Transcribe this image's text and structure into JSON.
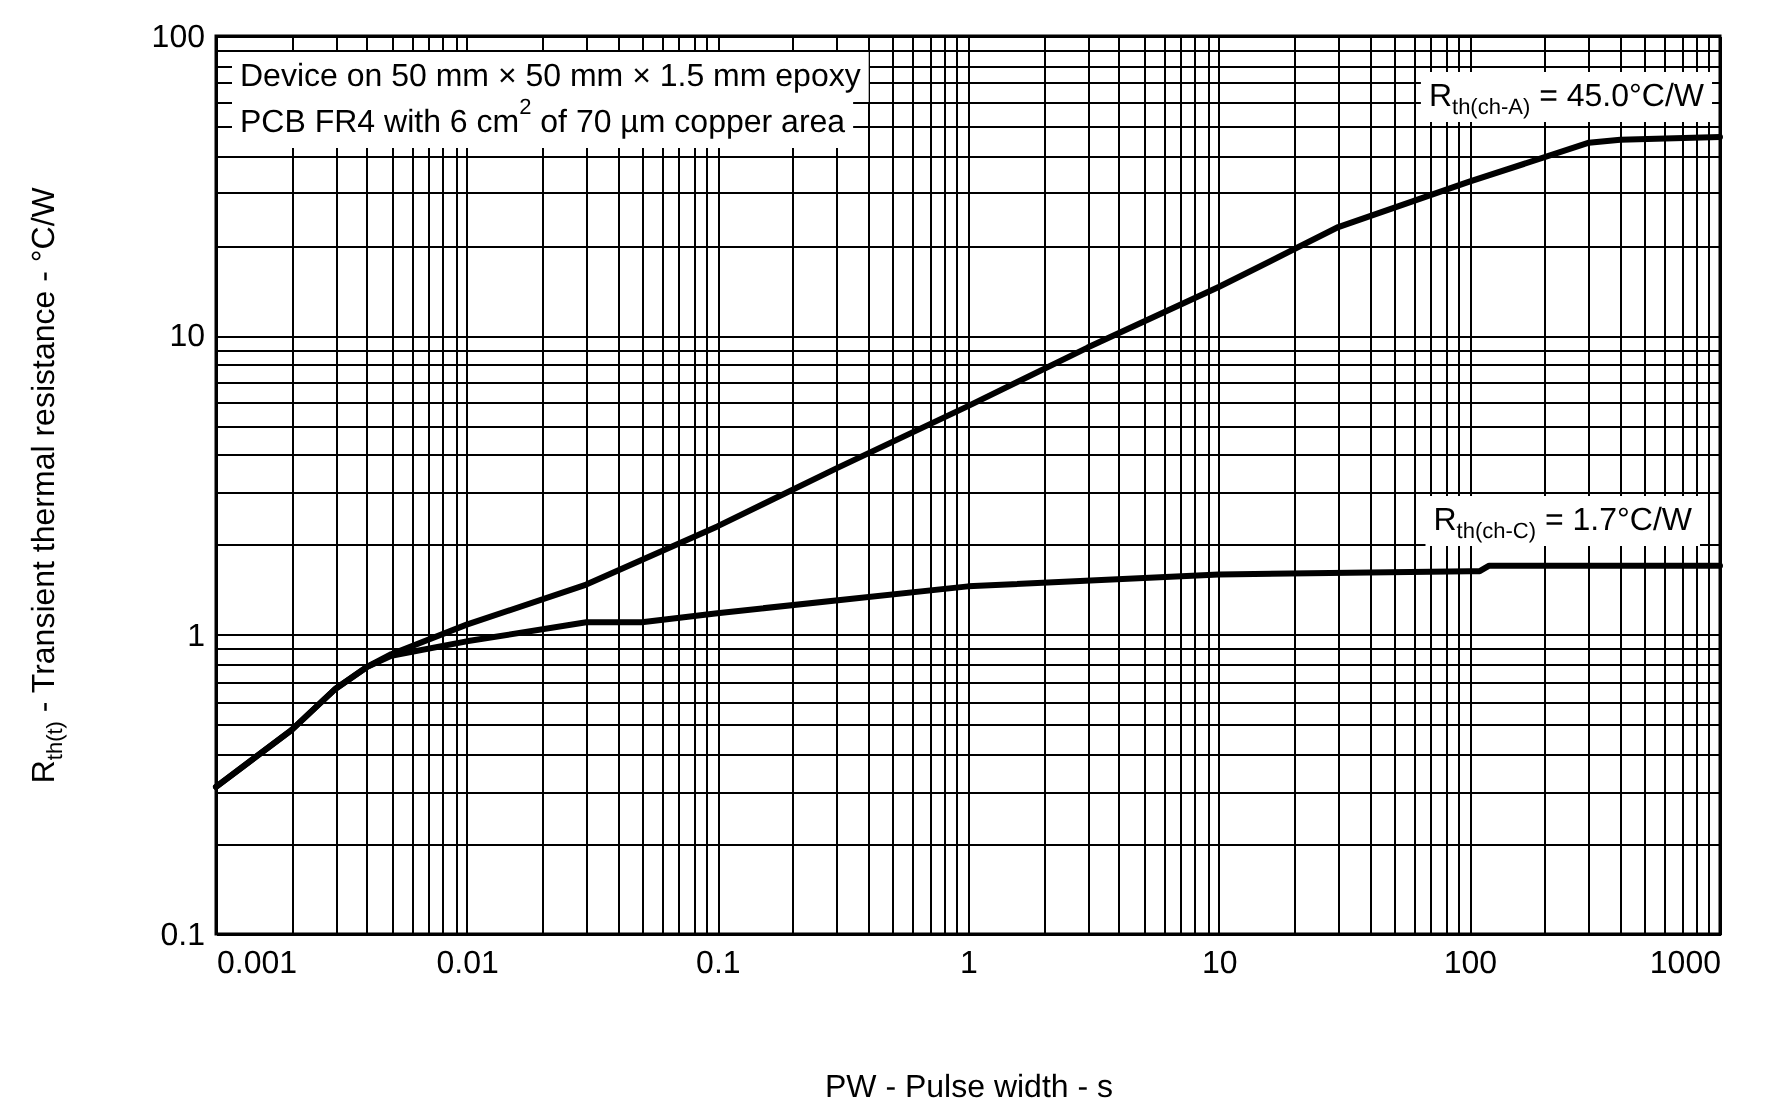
{
  "chart_data": {
    "type": "line",
    "xlabel": "PW - Pulse width - s",
    "ylabel": "R$_{th(t)}$ - Transient thermal resistance - °C/W",
    "log": "xy",
    "grid": true,
    "marker": "none",
    "line_style": "solid",
    "xlim": [
      0.001,
      1000
    ],
    "xticks": [
      0.001,
      0.01,
      0.1,
      1,
      10,
      100,
      1000
    ],
    "ylim": [
      0.1,
      100
    ],
    "yticks": [
      0.1,
      1,
      10,
      100
    ],
    "series": [
      {
        "color": "#000000",
        "x": [
          0.001,
          0.002,
          0.003,
          0.004,
          0.005,
          0.01,
          0.03,
          0.1,
          0.3,
          1,
          3,
          10,
          30,
          100,
          300,
          400,
          1000
        ],
        "values": [
          0.31,
          0.48,
          0.66,
          0.78,
          0.86,
          1.08,
          1.47,
          2.3,
          3.6,
          5.8,
          9.1,
          14.5,
          23,
          32.6,
          44,
          45,
          46
        ]
      },
      {
        "color": "#000000",
        "x": [
          0.001,
          0.002,
          0.003,
          0.004,
          0.005,
          0.01,
          0.03,
          0.05,
          0.1,
          1,
          10,
          100,
          110,
          120,
          1000
        ],
        "values": [
          0.31,
          0.48,
          0.66,
          0.78,
          0.85,
          0.95,
          1.1,
          1.1,
          1.18,
          1.45,
          1.59,
          1.63,
          1.63,
          1.7,
          1.7
        ]
      }
    ],
    "annotations": [
      "Device on 50 mm × 50 mm × 1.5 mm epoxy\nPCB FR4 with 6 cm$^{2}$ of 70 µm copper area",
      "R$_{th(ch-A)}$ = 45.0°C/W",
      "R$_{th(ch-C)}$ = 1.7°C/W"
    ]
  }
}
